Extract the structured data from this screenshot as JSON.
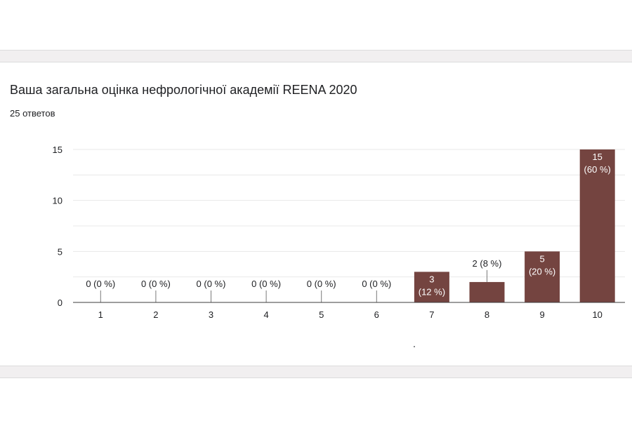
{
  "question": {
    "title": "Ваша загальна оцінка нефрологічної академії REENA 2020",
    "responses": "25 ответов"
  },
  "colors": {
    "bar": "#744440",
    "grid": "#e8e8e8",
    "axis": "#3c3c3c",
    "text": "#202124"
  },
  "chart_data": {
    "type": "bar",
    "categories": [
      "1",
      "2",
      "3",
      "4",
      "5",
      "6",
      "7",
      "8",
      "9",
      "10"
    ],
    "values": [
      0,
      0,
      0,
      0,
      0,
      0,
      3,
      2,
      5,
      15
    ],
    "labels": [
      "0 (0 %)",
      "0 (0 %)",
      "0 (0 %)",
      "0 (0 %)",
      "0 (0 %)",
      "0 (0 %)",
      "3\n(12 %)",
      "2 (8 %)",
      "5\n(20 %)",
      "15\n(60 %)"
    ],
    "ylim": [
      0,
      15
    ],
    "yticks": [
      0,
      5,
      10,
      15
    ],
    "grid": true,
    "legend": "none"
  }
}
